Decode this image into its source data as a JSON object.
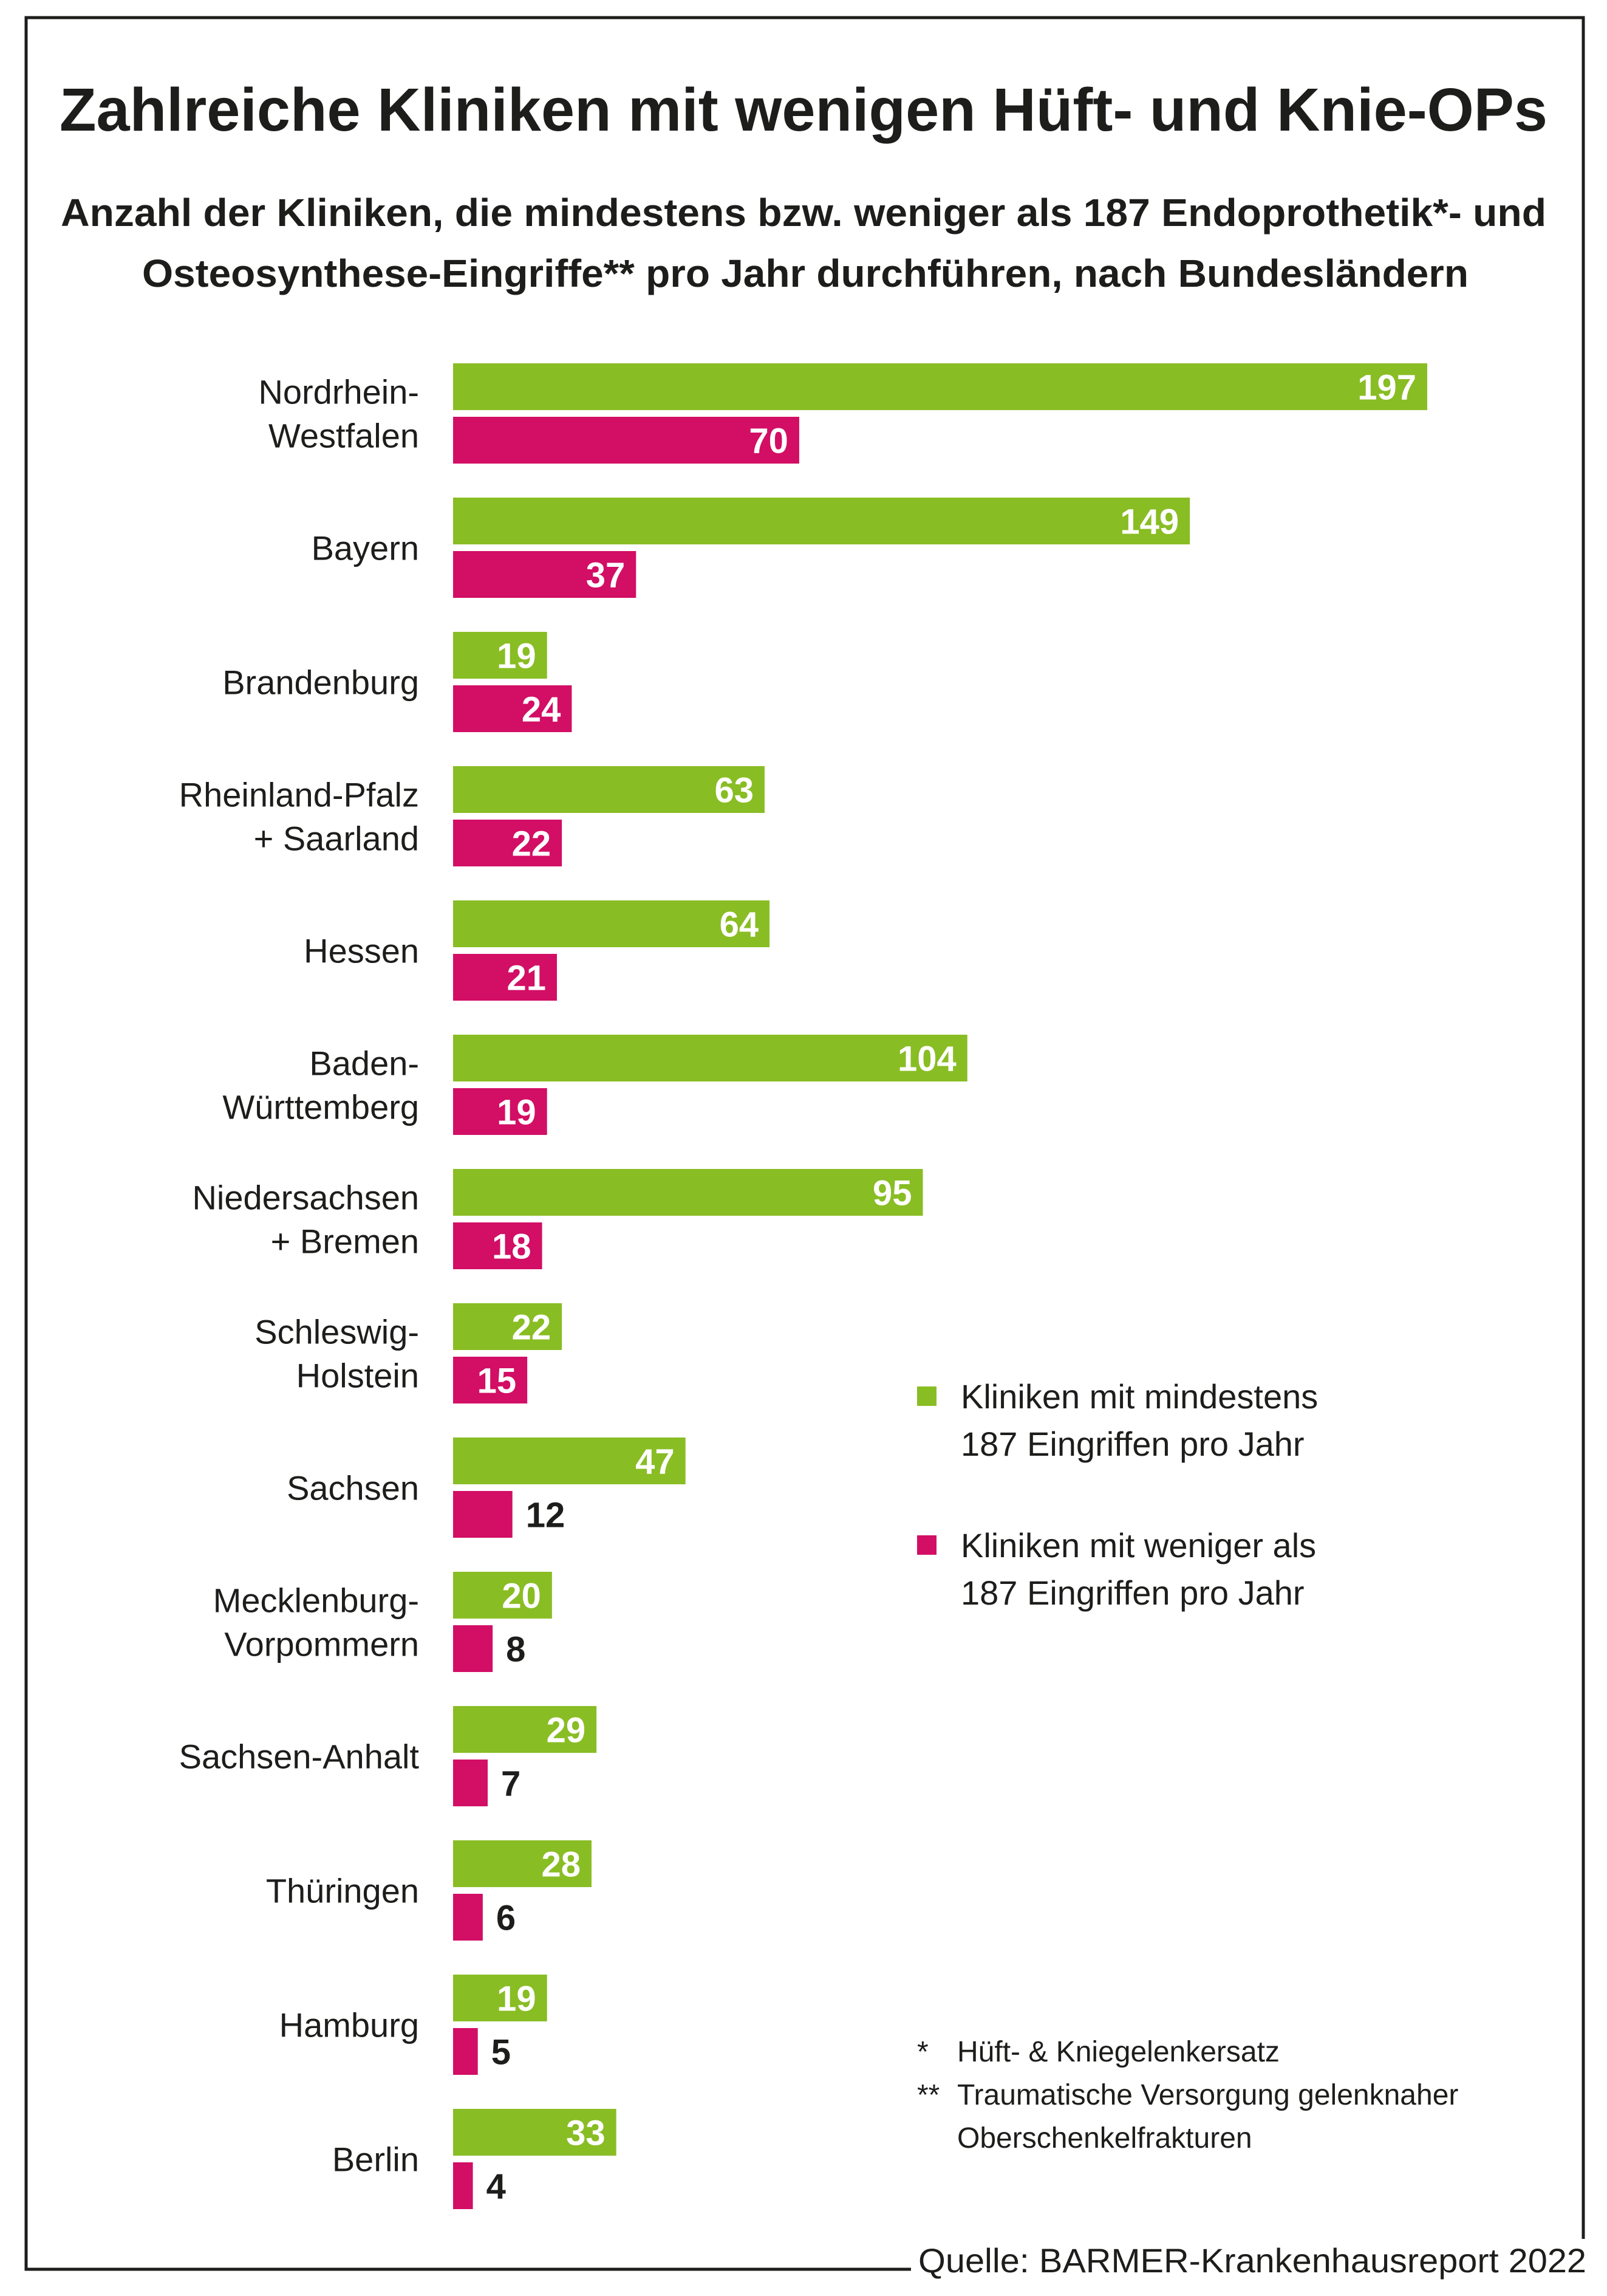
{
  "chart_data": {
    "type": "bar",
    "orientation": "horizontal",
    "title": "Zahlreiche Kliniken mit wenigen Hüft- und Knie-OPs",
    "subtitle_lines": [
      "Anzahl der Kliniken, die mindestens bzw. weniger als 187 Endoprothetik*- und",
      "Osteosynthese-Eingriffe**  pro Jahr durchführen, nach Bundesländern"
    ],
    "categories": [
      [
        "Nordrhein-",
        "Westfalen"
      ],
      [
        "Bayern"
      ],
      [
        "Brandenburg"
      ],
      [
        "Rheinland-Pfalz",
        "+ Saarland"
      ],
      [
        "Hessen"
      ],
      [
        "Baden-",
        "Württemberg"
      ],
      [
        "Niedersachsen",
        "+ Bremen"
      ],
      [
        "Schleswig-",
        "Holstein"
      ],
      [
        "Sachsen"
      ],
      [
        "Mecklenburg-",
        "Vorpommern"
      ],
      [
        "Sachsen-Anhalt"
      ],
      [
        "Thüringen"
      ],
      [
        "Hamburg"
      ],
      [
        "Berlin"
      ]
    ],
    "series": [
      {
        "name": [
          "Kliniken mit mindestens",
          "187 Eingriffen pro Jahr"
        ],
        "color": "#89BD24",
        "values": [
          197,
          149,
          19,
          63,
          64,
          104,
          95,
          22,
          47,
          20,
          29,
          28,
          19,
          33
        ]
      },
      {
        "name": [
          "Kliniken mit weniger als",
          "187 Eingriffen pro Jahr"
        ],
        "color": "#D20E65",
        "values": [
          70,
          37,
          24,
          22,
          21,
          19,
          18,
          15,
          12,
          8,
          7,
          6,
          5,
          4
        ]
      }
    ],
    "xlim": [
      0,
      197
    ],
    "grid": false,
    "legend_position": "right",
    "footnotes": [
      {
        "mark": "*",
        "lines": [
          "Hüft- & Kniegelenkersatz"
        ]
      },
      {
        "mark": "**",
        "lines": [
          "Traumatische Versorgung gelenknaher",
          "Oberschenkelfrakturen"
        ]
      }
    ],
    "source": "Quelle: BARMER-Krankenhausreport 2022"
  }
}
